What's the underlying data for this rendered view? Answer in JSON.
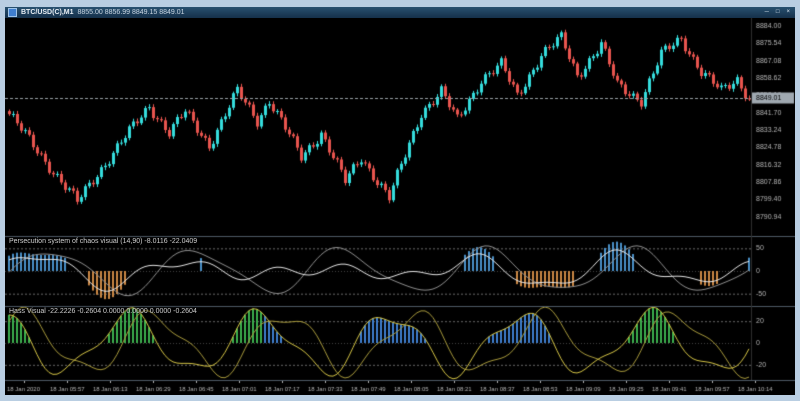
{
  "window": {
    "frame_color": "#b9cee2",
    "title": "BTC/USD(C),M1",
    "quote": "8855.00 8856.99 8849.15 8849.01",
    "controls": {
      "minimize": "─",
      "restore": "□",
      "close": "×"
    }
  },
  "chart_data": {
    "type": "candlestick",
    "symbol": "BTC/USD(C)",
    "timeframe": "M1",
    "price_range": {
      "min": 8782,
      "max": 8886
    },
    "last_price": "8849.01",
    "price_axis_labels": [
      "8884.00",
      "8875.54",
      "8867.08",
      "8858.62",
      "8850.16",
      "8841.70",
      "8833.24",
      "8824.78",
      "8816.32",
      "8807.86",
      "8799.40",
      "8790.94"
    ],
    "candle_count": 186,
    "close_anchors": [
      [
        0,
        8841
      ],
      [
        17,
        8798
      ],
      [
        22,
        8812
      ],
      [
        35,
        8845
      ],
      [
        40,
        8832
      ],
      [
        44,
        8842
      ],
      [
        50,
        8826
      ],
      [
        57,
        8852
      ],
      [
        62,
        8838
      ],
      [
        65,
        8848
      ],
      [
        73,
        8820
      ],
      [
        78,
        8832
      ],
      [
        84,
        8808
      ],
      [
        88,
        8820
      ],
      [
        95,
        8800
      ],
      [
        103,
        8842
      ],
      [
        108,
        8852
      ],
      [
        112,
        8838
      ],
      [
        118,
        8858
      ],
      [
        123,
        8865
      ],
      [
        127,
        8850
      ],
      [
        133,
        8870
      ],
      [
        138,
        8878
      ],
      [
        142,
        8860
      ],
      [
        148,
        8875
      ],
      [
        152,
        8855
      ],
      [
        158,
        8848
      ],
      [
        163,
        8870
      ],
      [
        168,
        8878
      ],
      [
        173,
        8862
      ],
      [
        178,
        8852
      ],
      [
        182,
        8858
      ],
      [
        185,
        8849
      ]
    ],
    "wiggle": [
      [
        1.7,
        2.0
      ],
      [
        0.47,
        1.4
      ]
    ],
    "colors": {
      "up": "#35dcdc",
      "down": "#e8544e",
      "axis_text": "#b4b4b4",
      "price_line": "#9aa0a6",
      "badge_bg": "#9fa8b0",
      "badge_text": "#000000",
      "separator": "#4e5a66",
      "axis_border": "#2e2e2e"
    }
  },
  "indicator1": {
    "label": "Persecution system of chaos visual (14,90) -8.0116 -22.0409",
    "axis_labels": [
      "50",
      "0",
      "-50"
    ],
    "levels": [
      50,
      -50
    ],
    "value_range": 75,
    "threshold": 28,
    "colors": {
      "bar_up": "#4a90c8",
      "bar_down": "#cc8844",
      "line1": "#e6e6e6",
      "line2": "#8f8f8f",
      "level": "#6a6a6a",
      "zero": "#454545"
    },
    "wave": {
      "a1": 52,
      "p1": 5.8,
      "ph1": 0.4,
      "mp": 21,
      "mph": 1.1,
      "a2": 16,
      "p2": 2.7,
      "ph2": 2.0,
      "l2a": 46,
      "l2p": 5.8,
      "l2ph": -0.25,
      "l2b": 10,
      "l2bp": 3.1,
      "l2bph": 1.0
    }
  },
  "indicator2": {
    "label": "Hass Visual -22.2226 -0.2604 0.0000 0.0000 0.0000 -0.2604",
    "axis_labels": [
      "20",
      "0",
      "-20"
    ],
    "levels": [
      20,
      -20
    ],
    "value_range": 33,
    "threshold": 4,
    "colors": {
      "bar_green": "#3cb04e",
      "bar_blue": "#3f7fd0",
      "line1": "#d4c445",
      "line2": "#a89a3c",
      "level": "#6a6a6a",
      "zero": "#454545"
    },
    "wave": {
      "a1": 26,
      "p1": 5.2,
      "ph1": 2.1,
      "a2": 7,
      "p2": 2.3,
      "ph2": 0.5,
      "slowp": 27,
      "slowph": 0.8,
      "line2_shift": 1.2
    }
  },
  "time_axis": {
    "color": "#b4b4b4",
    "labels": [
      "18 Jan 2020",
      "18 Jan 05:57",
      "18 Jan 06:13",
      "18 Jan 06:29",
      "18 Jan 06:45",
      "18 Jan 07:01",
      "18 Jan 07:17",
      "18 Jan 07:33",
      "18 Jan 07:49",
      "18 Jan 08:05",
      "18 Jan 08:21",
      "18 Jan 08:37",
      "18 Jan 08:53",
      "18 Jan 09:09",
      "18 Jan 09:25",
      "18 Jan 09:41",
      "18 Jan 09:57",
      "18 Jan 10:14"
    ]
  }
}
